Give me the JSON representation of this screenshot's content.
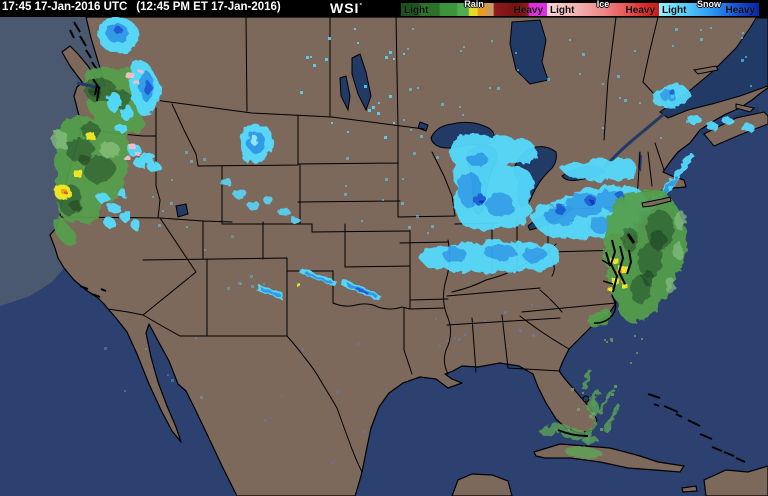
{
  "header": {
    "timestamp_utc": "17:45 17-Jan-2016 UTC",
    "timestamp_local": "(12:45 PM ET 17-Jan-2016)",
    "logo": "WSI",
    "logo_mark": "°"
  },
  "legend": {
    "groups": [
      {
        "type": "Rain",
        "light_label": "Light",
        "heavy_label": "Heavy",
        "stops": [
          [
            "#1b531b",
            0
          ],
          [
            "#1b531b",
            12
          ],
          [
            "#2a722a",
            13
          ],
          [
            "#2a722a",
            26
          ],
          [
            "#3c943c",
            27
          ],
          [
            "#3c943c",
            38
          ],
          [
            "#50ac50",
            39
          ],
          [
            "#50ac50",
            46
          ],
          [
            "#e4dc24",
            47
          ],
          [
            "#e4dc24",
            52
          ],
          [
            "#e89a22",
            53
          ],
          [
            "#e89a22",
            58
          ],
          [
            "#c79a66",
            59
          ],
          [
            "#c79a66",
            63
          ],
          [
            "#8c1c1c",
            64
          ],
          [
            "#77100f",
            80
          ],
          [
            "#8c1c1c",
            87
          ],
          [
            "#e22ce2",
            88
          ],
          [
            "#e22ce2",
            100
          ]
        ]
      },
      {
        "type": "Ice",
        "light_label": "Light",
        "heavy_label": "Heavy",
        "stops": [
          [
            "#f8d4d4",
            0
          ],
          [
            "#f4b4b4",
            25
          ],
          [
            "#ee8888",
            50
          ],
          [
            "#e65454",
            72
          ],
          [
            "#da2828",
            88
          ],
          [
            "#c81e1e",
            100
          ]
        ]
      },
      {
        "type": "Snow",
        "light_label": "Light",
        "heavy_label": "Heavy",
        "stops": [
          [
            "#96f2ff",
            0
          ],
          [
            "#5cd4fc",
            22
          ],
          [
            "#38a8f2",
            45
          ],
          [
            "#2277e6",
            65
          ],
          [
            "#1246cc",
            82
          ],
          [
            "#0824a8",
            100
          ]
        ]
      }
    ]
  },
  "map_colors": {
    "ocean": "#2c4170",
    "radar_coverage_ocean": "#4a5970",
    "land": "#7d685c",
    "lakes": "#223a66",
    "political_borders": "#000000",
    "rain_light": "#55a04b",
    "rain_dark": "#2f6430",
    "rain_heavy_yellow": "#eee428",
    "rain_heavy_orange": "#f0a01e",
    "snow_light": "#55dcff",
    "snow_medium": "#2e9ef0",
    "snow_heavy": "#1a5cdc",
    "ice_light": "#f6becc"
  }
}
